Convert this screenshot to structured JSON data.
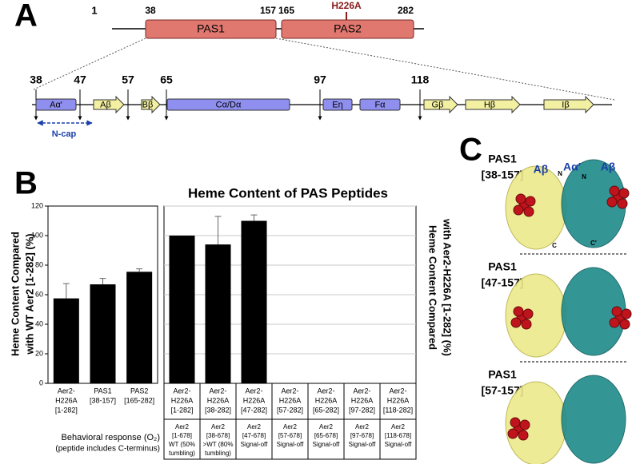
{
  "panel_labels": [
    "A",
    "B",
    "C"
  ],
  "domain_map": {
    "start": 1,
    "mutation": "H226A",
    "domains": [
      {
        "label": "PAS1",
        "start": 38,
        "end": 157,
        "color": "#e07870"
      },
      {
        "label": "PAS2",
        "start": 165,
        "end": 282,
        "color": "#e07870"
      }
    ]
  },
  "pas1_detail": {
    "residues": [
      38,
      47,
      57,
      65,
      97,
      118
    ],
    "elements": [
      {
        "label": "Aα′",
        "color": "#8f8fef"
      },
      {
        "label": "Aβ",
        "color": "#f3f0a2"
      },
      {
        "label": "Bβ",
        "color": "#f3f0a2"
      },
      {
        "label": "Cα/Dα",
        "color": "#8f8fef"
      },
      {
        "label": "Eη",
        "color": "#8f8fef"
      },
      {
        "label": "Fα",
        "color": "#8f8fef"
      },
      {
        "label": "Gβ",
        "color": "#f3f0a2"
      },
      {
        "label": "Hβ",
        "color": "#f3f0a2"
      },
      {
        "label": "Iβ",
        "color": "#f3f0a2"
      }
    ],
    "ncap": "N-cap"
  },
  "chart_data": [
    {
      "type": "bar",
      "title": "Heme Content of PAS Peptides",
      "ylabel": [
        "Heme Content Compared",
        "with WT Aer2 [1-282] (%)"
      ],
      "categories": [
        [
          "Aer2-",
          "H226A",
          "[1-282]"
        ],
        [
          "PAS1",
          "[38-157]"
        ],
        [
          "PAS2",
          "[165-282]"
        ]
      ],
      "values": [
        57.5,
        67,
        75.5
      ],
      "errors": [
        10,
        4,
        2
      ],
      "color": "#000000",
      "ylim": [
        0,
        120
      ],
      "yticks": [
        0,
        20,
        40,
        60,
        80,
        100,
        120
      ],
      "grid": false
    },
    {
      "type": "bar",
      "ylabel": [
        "Heme Content Compared",
        "with Aer2-H226A [1-282] (%)"
      ],
      "categories": [
        [
          "Aer2-",
          "H226A",
          "[1-282]"
        ],
        [
          "Aer2-",
          "H226A",
          "[38-282]"
        ],
        [
          "Aer2-",
          "H226A",
          "[47-282]"
        ],
        [
          "Aer2-",
          "H226A",
          "[57-282]"
        ],
        [
          "Aer2-",
          "H226A",
          "[65-282]"
        ],
        [
          "Aer2-",
          "H226A",
          "[97-282]"
        ],
        [
          "Aer2-",
          "H226A",
          "[118-282]"
        ]
      ],
      "values": [
        100,
        94,
        110,
        null,
        null,
        null,
        null
      ],
      "errors": [
        null,
        19,
        4,
        null,
        null,
        null,
        null
      ],
      "color": "#000000",
      "ylim": [
        0,
        120
      ],
      "yticks": [
        0,
        20,
        40,
        60,
        80,
        100,
        120
      ],
      "grid": true
    }
  ],
  "behavior_table": {
    "label": [
      "Behavioral response (O₂)",
      "(peptide includes C-terminus)"
    ],
    "cells": [
      [
        "Aer2",
        "[1-678]",
        "WT (50%",
        "tumbling)"
      ],
      [
        "Aer2",
        "[38-678]",
        ">WT (80%",
        "tumbling)"
      ],
      [
        "Aer2",
        "[47-678]",
        "Signal-off"
      ],
      [
        "Aer2",
        "[57-678]",
        "Signal-off"
      ],
      [
        "Aer2",
        "[65-678]",
        "Signal-off"
      ],
      [
        "Aer2",
        "[97-678]",
        "Signal-off"
      ],
      [
        "Aer2",
        "[118-678]",
        "Signal-off"
      ]
    ]
  },
  "structures": [
    {
      "label": [
        "PAS1",
        "[38-157]"
      ]
    },
    {
      "label": [
        "PAS1",
        "[47-157]"
      ]
    },
    {
      "label": [
        "PAS1",
        "[57-157]"
      ]
    }
  ],
  "structure_annotations": [
    "Aβ",
    "Aα′",
    "Aβ",
    "N",
    "N",
    "C",
    "C′"
  ]
}
